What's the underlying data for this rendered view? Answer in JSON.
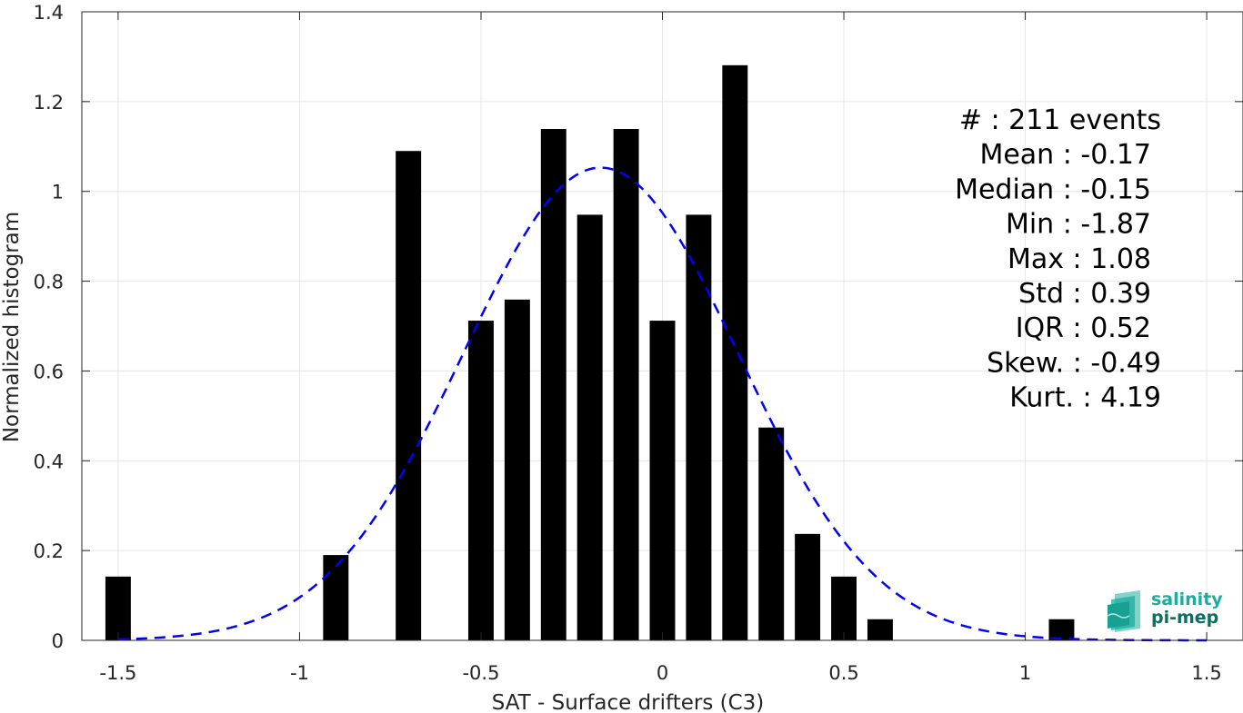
{
  "chart_data": {
    "type": "bar",
    "xlabel": "SAT - Surface drifters (C3)",
    "ylabel": "Normalized histogram",
    "xlim": [
      -1.6,
      1.6
    ],
    "ylim": [
      0,
      1.4
    ],
    "xticks": [
      -1.5,
      -1,
      -0.5,
      0,
      0.5,
      1,
      1.5
    ],
    "xtick_labels": [
      "-1.5",
      "-1",
      "-0.5",
      "0",
      "0.5",
      "1",
      "1.5"
    ],
    "yticks": [
      0,
      0.2,
      0.4,
      0.6,
      0.8,
      1,
      1.2,
      1.4
    ],
    "ytick_labels": [
      "0",
      "0.2",
      "0.4",
      "0.6",
      "0.8",
      "1",
      "1.2",
      "1.4"
    ],
    "grid": true,
    "bar_color": "#000000",
    "bar_width": 0.07,
    "bars": [
      {
        "x": -1.5,
        "y": 0.142
      },
      {
        "x": -0.9,
        "y": 0.19
      },
      {
        "x": -0.7,
        "y": 1.09
      },
      {
        "x": -0.5,
        "y": 0.712
      },
      {
        "x": -0.4,
        "y": 0.759
      },
      {
        "x": -0.3,
        "y": 1.139
      },
      {
        "x": -0.2,
        "y": 0.948
      },
      {
        "x": -0.1,
        "y": 1.139
      },
      {
        "x": 0.0,
        "y": 0.712
      },
      {
        "x": 0.1,
        "y": 0.948
      },
      {
        "x": 0.2,
        "y": 1.281
      },
      {
        "x": 0.3,
        "y": 0.474
      },
      {
        "x": 0.4,
        "y": 0.237
      },
      {
        "x": 0.5,
        "y": 0.142
      },
      {
        "x": 0.6,
        "y": 0.047
      },
      {
        "x": 1.1,
        "y": 0.047
      }
    ],
    "fit_curve": {
      "style": "dashed",
      "color": "#0000ff",
      "mean": -0.17,
      "std": 0.379,
      "peak": 1.053,
      "x_range": [
        -1.5,
        1.5
      ]
    },
    "annotations": [
      "#  : 211 events",
      "Mean : -0.17",
      "Median : -0.15",
      "Min : -1.87",
      "Max : 1.08",
      "Std : 0.39",
      "IQR : 0.52",
      "Skew. : -0.49",
      "Kurt. : 4.19"
    ]
  },
  "logo": {
    "line1": "salinity",
    "line2": "pi-mep",
    "color1": "#1aae9f",
    "color2": "#0f6e63"
  }
}
